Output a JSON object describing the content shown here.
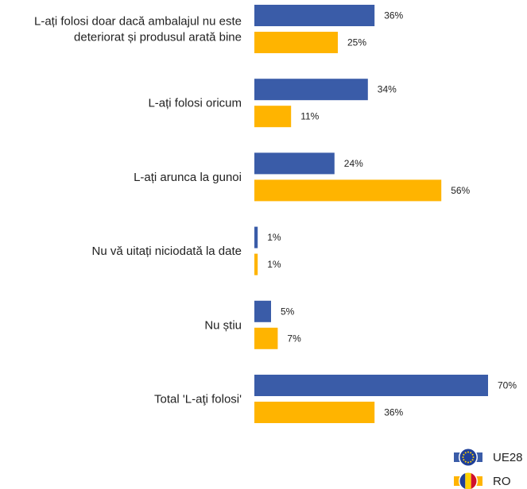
{
  "chart_data": {
    "type": "bar",
    "orientation": "horizontal",
    "value_suffix": "%",
    "categories": [
      [
        "L-ați folosi doar dacă ambalajul nu este",
        "deteriorat și produsul arată bine"
      ],
      [
        "L-ați folosi oricum"
      ],
      [
        "L-ați arunca la gunoi"
      ],
      [
        "Nu vă uitați niciodată la date"
      ],
      [
        "Nu știu"
      ],
      [
        "Total 'L-aţi folosi'"
      ]
    ],
    "series": [
      {
        "name": "UE28",
        "color": "#3a5ca8",
        "icon": "eu-flag-icon",
        "values": [
          36,
          34,
          24,
          1,
          5,
          70
        ]
      },
      {
        "name": "RO",
        "color": "#ffb400",
        "icon": "ro-flag-icon",
        "values": [
          25,
          11,
          56,
          1,
          7,
          36
        ]
      }
    ],
    "legend_position": "bottom-right",
    "grid": false
  }
}
